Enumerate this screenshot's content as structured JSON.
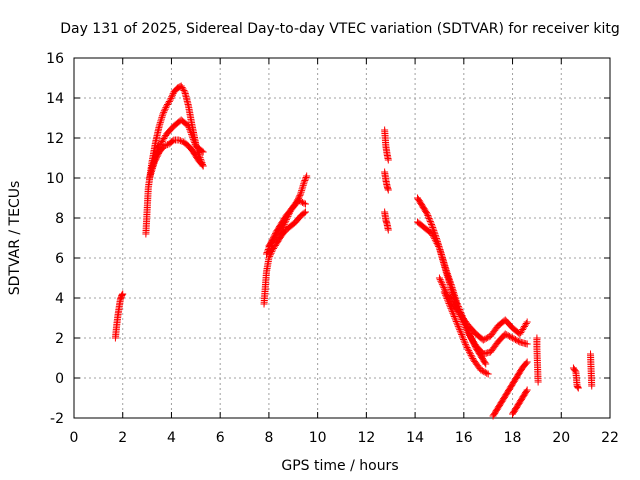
{
  "chart_data": {
    "type": "scatter",
    "title": "Day 131 of 2025, Sidereal Day-to-day VTEC variation (SDTVAR) for receiver kitg",
    "xlabel": "GPS time / hours",
    "ylabel": "SDTVAR / TECUs",
    "xlim": [
      0,
      22
    ],
    "ylim": [
      -2,
      16
    ],
    "xticks": [
      "0",
      "2",
      "4",
      "6",
      "8",
      "10",
      "12",
      "14",
      "16",
      "18",
      "20",
      "22"
    ],
    "yticks": [
      "-2",
      "0",
      "2",
      "4",
      "6",
      "8",
      "10",
      "12",
      "14",
      "16"
    ],
    "grid": true,
    "marker": "plus",
    "color": "#ff0000",
    "series": [
      {
        "name": "SDTVAR",
        "segments": [
          {
            "x": [
              1.7,
              1.75,
              1.8,
              1.85,
              1.9,
              1.95,
              2.0
            ],
            "y": [
              2.0,
              2.6,
              3.1,
              3.5,
              3.9,
              4.1,
              4.2
            ]
          },
          {
            "x": [
              2.95,
              3.05,
              3.2,
              3.35,
              3.5,
              3.65,
              3.8,
              3.95,
              4.1,
              4.25,
              4.4,
              4.55,
              4.7,
              4.85,
              5.0,
              5.15,
              5.3
            ],
            "y": [
              7.2,
              9.5,
              10.8,
              11.8,
              12.6,
              13.2,
              13.6,
              13.9,
              14.3,
              14.5,
              14.6,
              14.3,
              13.6,
              12.6,
              11.7,
              11.1,
              10.6
            ]
          },
          {
            "x": [
              3.1,
              3.3,
              3.5,
              3.7,
              3.9,
              4.1,
              4.3,
              4.5,
              4.7,
              4.9,
              5.1,
              5.3
            ],
            "y": [
              10.0,
              10.8,
              11.3,
              11.6,
              11.7,
              11.9,
              11.9,
              11.8,
              11.6,
              11.3,
              10.9,
              10.6
            ]
          },
          {
            "x": [
              3.2,
              3.5,
              3.8,
              4.1,
              4.4,
              4.7,
              5.0,
              5.3
            ],
            "y": [
              10.5,
              11.6,
              12.2,
              12.6,
              12.9,
              12.6,
              11.6,
              11.3
            ]
          },
          {
            "x": [
              7.8,
              7.9,
              8.0,
              8.15,
              8.3,
              8.5,
              8.7,
              8.9,
              9.1,
              9.3,
              9.5
            ],
            "y": [
              3.7,
              5.3,
              6.0,
              6.4,
              6.7,
              7.1,
              7.4,
              7.6,
              7.8,
              8.1,
              8.3
            ]
          },
          {
            "x": [
              7.9,
              8.1,
              8.3,
              8.5,
              8.7,
              8.9,
              9.1,
              9.3,
              9.45,
              9.55
            ],
            "y": [
              6.2,
              6.8,
              7.3,
              7.7,
              8.1,
              8.4,
              8.7,
              9.2,
              9.8,
              10.1
            ]
          },
          {
            "x": [
              8.0,
              8.3,
              8.6,
              8.9,
              9.2,
              9.5
            ],
            "y": [
              6.6,
              7.1,
              7.6,
              8.4,
              8.9,
              8.7
            ]
          },
          {
            "x": [
              12.75,
              12.8,
              12.85,
              12.9
            ],
            "y": [
              12.4,
              11.6,
              11.2,
              10.9
            ]
          },
          {
            "x": [
              12.75,
              12.8,
              12.85,
              12.9
            ],
            "y": [
              10.3,
              9.9,
              9.6,
              9.4
            ]
          },
          {
            "x": [
              12.75,
              12.8,
              12.85,
              12.9
            ],
            "y": [
              8.3,
              7.9,
              7.7,
              7.4
            ]
          },
          {
            "x": [
              14.1,
              14.3,
              14.5,
              14.7,
              14.9,
              15.1,
              15.3,
              15.5,
              15.7,
              15.9,
              16.1,
              16.3,
              16.5,
              16.7,
              16.9
            ],
            "y": [
              9.0,
              8.6,
              8.2,
              7.6,
              6.9,
              6.1,
              5.3,
              4.6,
              3.8,
              3.2,
              2.6,
              2.0,
              1.5,
              1.1,
              0.7
            ]
          },
          {
            "x": [
              14.1,
              14.4,
              14.7,
              15.0,
              15.3,
              15.6,
              15.9,
              16.2,
              16.5,
              16.8,
              17.1,
              17.4,
              17.7,
              18.0,
              18.3,
              18.6
            ],
            "y": [
              7.8,
              7.5,
              7.2,
              6.5,
              5.2,
              4.0,
              3.0,
              2.2,
              1.6,
              1.2,
              1.3,
              1.8,
              2.2,
              2.0,
              1.8,
              1.7
            ]
          },
          {
            "x": [
              15.0,
              15.3,
              15.6,
              15.9,
              16.2,
              16.5,
              16.8,
              17.1,
              17.4,
              17.7,
              18.0,
              18.3,
              18.6
            ],
            "y": [
              5.0,
              4.2,
              3.6,
              3.1,
              2.6,
              2.2,
              1.9,
              2.1,
              2.6,
              2.9,
              2.5,
              2.2,
              2.8
            ]
          },
          {
            "x": [
              15.2,
              15.5,
              15.8,
              16.1,
              16.4,
              16.7,
              17.0
            ],
            "y": [
              4.3,
              3.4,
              2.5,
              1.6,
              0.9,
              0.4,
              0.2
            ]
          },
          {
            "x": [
              17.2,
              17.4,
              17.6,
              17.8,
              18.0,
              18.2,
              18.4,
              18.6
            ],
            "y": [
              -1.9,
              -1.5,
              -1.1,
              -0.7,
              -0.3,
              0.1,
              0.5,
              0.8
            ]
          },
          {
            "x": [
              18.0,
              18.2,
              18.4,
              18.6
            ],
            "y": [
              -1.8,
              -1.4,
              -1.0,
              -0.6
            ]
          },
          {
            "x": [
              19.0,
              19.0,
              19.05
            ],
            "y": [
              2.0,
              1.5,
              -0.2
            ]
          },
          {
            "x": [
              20.5,
              20.6,
              20.65,
              20.7
            ],
            "y": [
              0.5,
              0.3,
              -0.4,
              -0.5
            ]
          },
          {
            "x": [
              21.2,
              21.25
            ],
            "y": [
              1.2,
              -0.4
            ]
          }
        ]
      }
    ]
  }
}
